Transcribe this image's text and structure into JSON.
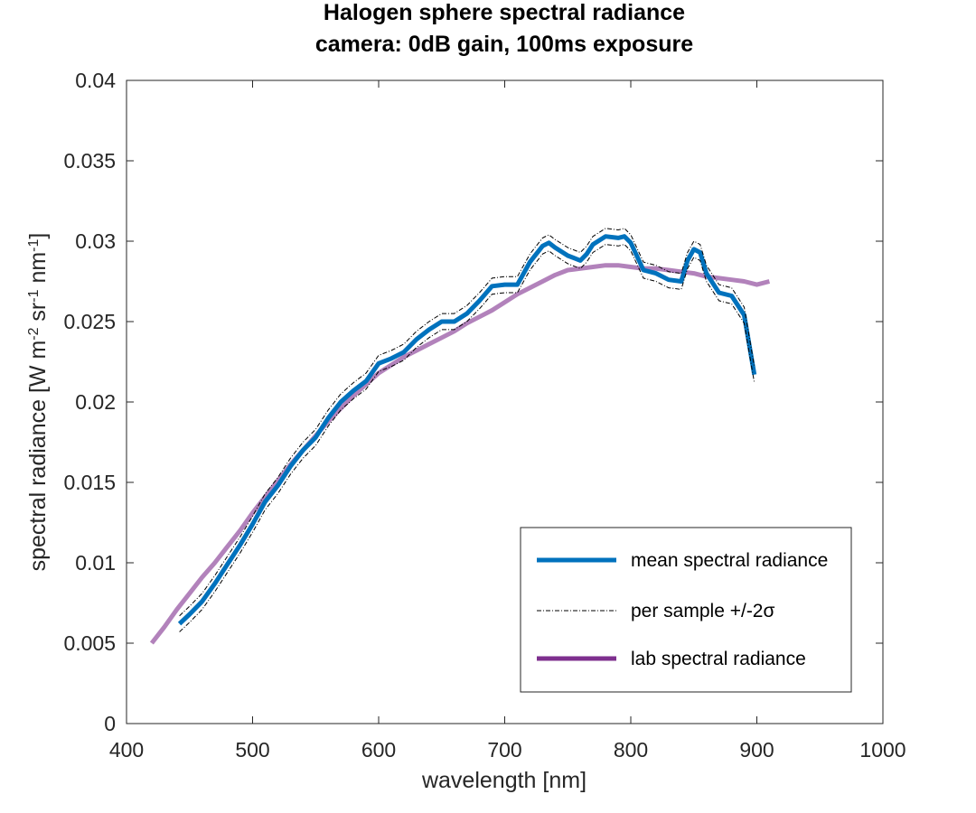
{
  "chart_data": {
    "type": "line",
    "title": "Halogen sphere spectral radiance",
    "subtitle": "camera: 0dB gain, 100ms exposure",
    "xlabel": "wavelength [nm]",
    "ylabel_parts": [
      "spectral radiance [W m",
      "-2",
      " sr",
      "-1",
      " nm",
      "-1",
      "]"
    ],
    "xlim": [
      400,
      1000
    ],
    "ylim": [
      0,
      0.04
    ],
    "xticks": [
      400,
      500,
      600,
      700,
      800,
      900,
      1000
    ],
    "xtick_labels": [
      "400",
      "500",
      "600",
      "700",
      "800",
      "900",
      "1000"
    ],
    "yticks": [
      0,
      0.005,
      0.01,
      0.015,
      0.02,
      0.025,
      0.03,
      0.035,
      0.04
    ],
    "ytick_labels": [
      "0",
      "0.005",
      "0.01",
      "0.015",
      "0.02",
      "0.025",
      "0.03",
      "0.035",
      "0.04"
    ],
    "grid": false,
    "legend_position": "bottom-right",
    "series": [
      {
        "name": "mean spectral radiance",
        "color": "#0072BD",
        "style": "solid-thick",
        "x": [
          442,
          450,
          460,
          470,
          480,
          490,
          500,
          510,
          520,
          530,
          540,
          550,
          560,
          570,
          580,
          590,
          600,
          610,
          620,
          630,
          640,
          650,
          660,
          670,
          680,
          690,
          700,
          710,
          720,
          730,
          735,
          740,
          750,
          760,
          765,
          770,
          780,
          790,
          795,
          800,
          810,
          820,
          830,
          840,
          845,
          850,
          855,
          860,
          870,
          880,
          890,
          898
        ],
        "y": [
          0.0062,
          0.0068,
          0.0076,
          0.0087,
          0.0099,
          0.0111,
          0.0124,
          0.0138,
          0.0148,
          0.016,
          0.017,
          0.0178,
          0.019,
          0.02,
          0.0207,
          0.0213,
          0.0224,
          0.0227,
          0.0231,
          0.0239,
          0.0245,
          0.025,
          0.025,
          0.0255,
          0.0263,
          0.0272,
          0.0273,
          0.0273,
          0.0287,
          0.0297,
          0.0299,
          0.0296,
          0.0291,
          0.0288,
          0.0292,
          0.0298,
          0.0303,
          0.0302,
          0.0303,
          0.0299,
          0.0282,
          0.028,
          0.0276,
          0.0275,
          0.0288,
          0.0295,
          0.0293,
          0.028,
          0.0268,
          0.0266,
          0.0254,
          0.0217
        ]
      },
      {
        "name": "per sample +/-2σ",
        "color": "#000000",
        "style": "dash-dot"
      },
      {
        "name": "lab spectral radiance",
        "color": "#7E2F8E",
        "style": "solid-thick",
        "x": [
          420,
          430,
          440,
          450,
          460,
          470,
          480,
          490,
          500,
          510,
          520,
          530,
          540,
          550,
          560,
          570,
          580,
          590,
          600,
          610,
          620,
          630,
          640,
          650,
          660,
          670,
          680,
          690,
          700,
          710,
          720,
          730,
          740,
          750,
          760,
          770,
          780,
          790,
          800,
          810,
          820,
          830,
          840,
          850,
          860,
          870,
          880,
          890,
          900,
          910
        ],
        "y": [
          0.005,
          0.006,
          0.0071,
          0.0081,
          0.0091,
          0.01,
          0.011,
          0.012,
          0.0131,
          0.0141,
          0.0151,
          0.0161,
          0.017,
          0.0179,
          0.0188,
          0.0196,
          0.0204,
          0.0211,
          0.0218,
          0.0223,
          0.0228,
          0.0232,
          0.0236,
          0.024,
          0.0244,
          0.0249,
          0.0253,
          0.0257,
          0.0262,
          0.0267,
          0.0271,
          0.0275,
          0.0279,
          0.0282,
          0.0283,
          0.0284,
          0.0285,
          0.0285,
          0.0284,
          0.0283,
          0.0283,
          0.0282,
          0.0281,
          0.028,
          0.0278,
          0.0277,
          0.0276,
          0.0275,
          0.0273,
          0.0275
        ]
      }
    ],
    "sigma_band": 0.0005
  }
}
